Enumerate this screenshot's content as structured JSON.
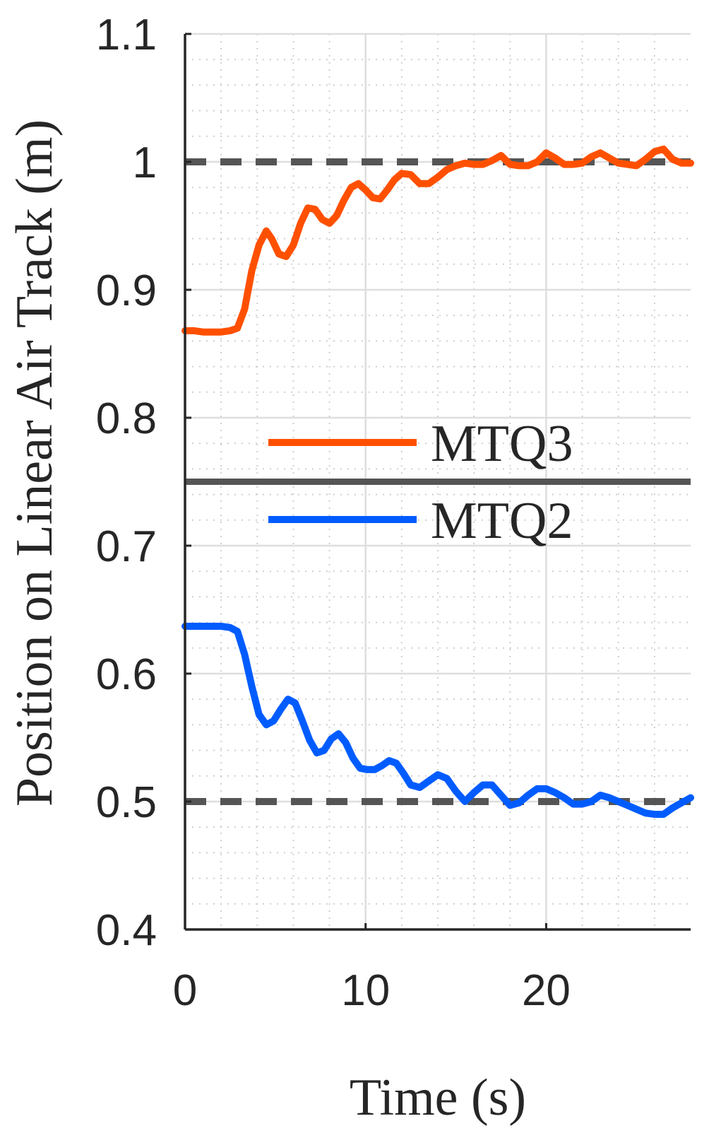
{
  "chart_data": {
    "type": "line",
    "title": "",
    "xlabel": "Time (s)",
    "ylabel": "Position on Linear Air Track (m)",
    "xlim": [
      0,
      28
    ],
    "ylim": [
      0.4,
      1.1
    ],
    "xticks": [
      0,
      10,
      20
    ],
    "xtick_labels": [
      "0",
      "10",
      "20"
    ],
    "yticks": [
      0.4,
      0.5,
      0.6,
      0.7,
      0.8,
      0.9,
      1.0,
      1.1
    ],
    "ytick_labels": [
      "0.4",
      "0.5",
      "0.6",
      "0.7",
      "0.8",
      "0.9",
      "1",
      "1.1"
    ],
    "grid": true,
    "minor_grid": true,
    "legend_position": "center-right",
    "reference_lines": [
      {
        "y": 1.0,
        "style": "dashed",
        "color": "#555555"
      },
      {
        "y": 0.5,
        "style": "dashed",
        "color": "#555555"
      },
      {
        "y": 0.75,
        "style": "solid",
        "color": "#555555"
      }
    ],
    "series": [
      {
        "name": "MTQ3",
        "color": "#FF5000",
        "x": [
          0,
          0.5,
          1,
          1.5,
          2,
          2.5,
          2.9,
          3.3,
          3.7,
          4.1,
          4.5,
          4.8,
          5.2,
          5.6,
          6.0,
          6.4,
          6.8,
          7.2,
          7.6,
          8.0,
          8.4,
          8.8,
          9.2,
          9.6,
          10.0,
          10.4,
          10.8,
          11.2,
          11.6,
          12.0,
          12.5,
          13.0,
          13.5,
          14.0,
          14.5,
          15.0,
          15.5,
          16.0,
          16.5,
          17.0,
          17.5,
          18.0,
          18.5,
          19.0,
          19.5,
          20.0,
          20.5,
          21.0,
          21.5,
          22.0,
          22.5,
          23.0,
          23.5,
          24.0,
          24.5,
          25.0,
          25.5,
          26.0,
          26.5,
          27.0,
          27.5,
          28.0
        ],
        "y": [
          0.868,
          0.868,
          0.867,
          0.867,
          0.867,
          0.868,
          0.87,
          0.885,
          0.915,
          0.935,
          0.946,
          0.94,
          0.928,
          0.926,
          0.935,
          0.952,
          0.964,
          0.963,
          0.955,
          0.952,
          0.958,
          0.97,
          0.98,
          0.983,
          0.978,
          0.972,
          0.971,
          0.978,
          0.986,
          0.991,
          0.99,
          0.983,
          0.983,
          0.988,
          0.994,
          0.997,
          0.999,
          0.998,
          0.998,
          1.001,
          1.005,
          0.998,
          0.997,
          0.997,
          1.0,
          1.007,
          1.003,
          0.998,
          0.998,
          0.999,
          1.004,
          1.007,
          1.003,
          0.999,
          0.998,
          0.997,
          1.002,
          1.008,
          1.01,
          1.002,
          0.999,
          0.999
        ]
      },
      {
        "name": "MTQ2",
        "color": "#005CFF",
        "x": [
          0,
          0.5,
          1,
          1.5,
          2,
          2.5,
          2.9,
          3.3,
          3.7,
          4.1,
          4.5,
          4.9,
          5.3,
          5.7,
          6.1,
          6.5,
          6.9,
          7.3,
          7.7,
          8.1,
          8.5,
          8.9,
          9.3,
          9.7,
          10.1,
          10.5,
          10.9,
          11.3,
          11.7,
          12.1,
          12.5,
          13.0,
          13.5,
          14.0,
          14.5,
          15.0,
          15.5,
          16.0,
          16.5,
          17.0,
          17.5,
          18.0,
          18.5,
          19.0,
          19.5,
          20.0,
          20.5,
          21.0,
          21.5,
          22.0,
          22.5,
          23.0,
          23.5,
          24.0,
          24.5,
          25.0,
          25.5,
          26.0,
          26.5,
          27.0,
          27.5,
          28.0
        ],
        "y": [
          0.637,
          0.637,
          0.637,
          0.637,
          0.637,
          0.636,
          0.633,
          0.615,
          0.59,
          0.568,
          0.56,
          0.563,
          0.572,
          0.58,
          0.577,
          0.563,
          0.548,
          0.538,
          0.54,
          0.549,
          0.553,
          0.546,
          0.534,
          0.526,
          0.525,
          0.525,
          0.528,
          0.532,
          0.53,
          0.522,
          0.513,
          0.511,
          0.516,
          0.521,
          0.518,
          0.508,
          0.5,
          0.507,
          0.513,
          0.513,
          0.505,
          0.497,
          0.499,
          0.505,
          0.51,
          0.51,
          0.507,
          0.503,
          0.498,
          0.498,
          0.5,
          0.505,
          0.503,
          0.5,
          0.497,
          0.494,
          0.491,
          0.49,
          0.49,
          0.495,
          0.499,
          0.503
        ]
      }
    ]
  }
}
